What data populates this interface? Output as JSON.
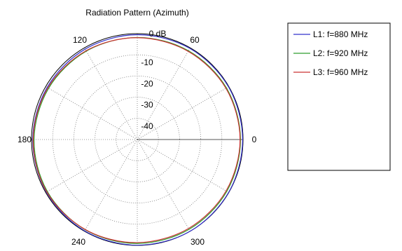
{
  "chart_data": {
    "type": "polar-line",
    "title": "Radiation Pattern (Azimuth)",
    "radial_unit_label": "0 dB",
    "radial_ticks": [
      -10,
      -20,
      -30,
      -40
    ],
    "radial_range_db": [
      -50,
      0
    ],
    "angle_labels": [
      "0",
      "60",
      "120",
      "180",
      "240",
      "300"
    ],
    "angle_label_values_deg": [
      0,
      60,
      120,
      180,
      240,
      300
    ],
    "grid": true,
    "legend_position": "right",
    "angles_deg": [
      0,
      30,
      60,
      90,
      120,
      150,
      180,
      210,
      240,
      270,
      300,
      330
    ],
    "series": [
      {
        "name": "L1: f=880 MHz",
        "color": "#3333cc",
        "values_db": [
          -0.2,
          -0.2,
          -0.3,
          -0.5,
          -0.7,
          -0.8,
          -0.6,
          -0.4,
          -0.2,
          -0.1,
          0.0,
          -0.1
        ]
      },
      {
        "name": "L2: f=920 MHz",
        "color": "#2e9e2e",
        "values_db": [
          -1.2,
          -1.3,
          -1.6,
          -1.8,
          -1.8,
          -1.6,
          -1.2,
          -0.9,
          -0.8,
          -0.9,
          -1.0,
          -1.1
        ]
      },
      {
        "name": "L3: f=960 MHz",
        "color": "#cc3333",
        "values_db": [
          -1.4,
          -1.6,
          -1.9,
          -1.9,
          -1.6,
          -1.2,
          -0.8,
          -0.6,
          -0.9,
          -1.3,
          -1.5,
          -1.5
        ]
      }
    ]
  }
}
